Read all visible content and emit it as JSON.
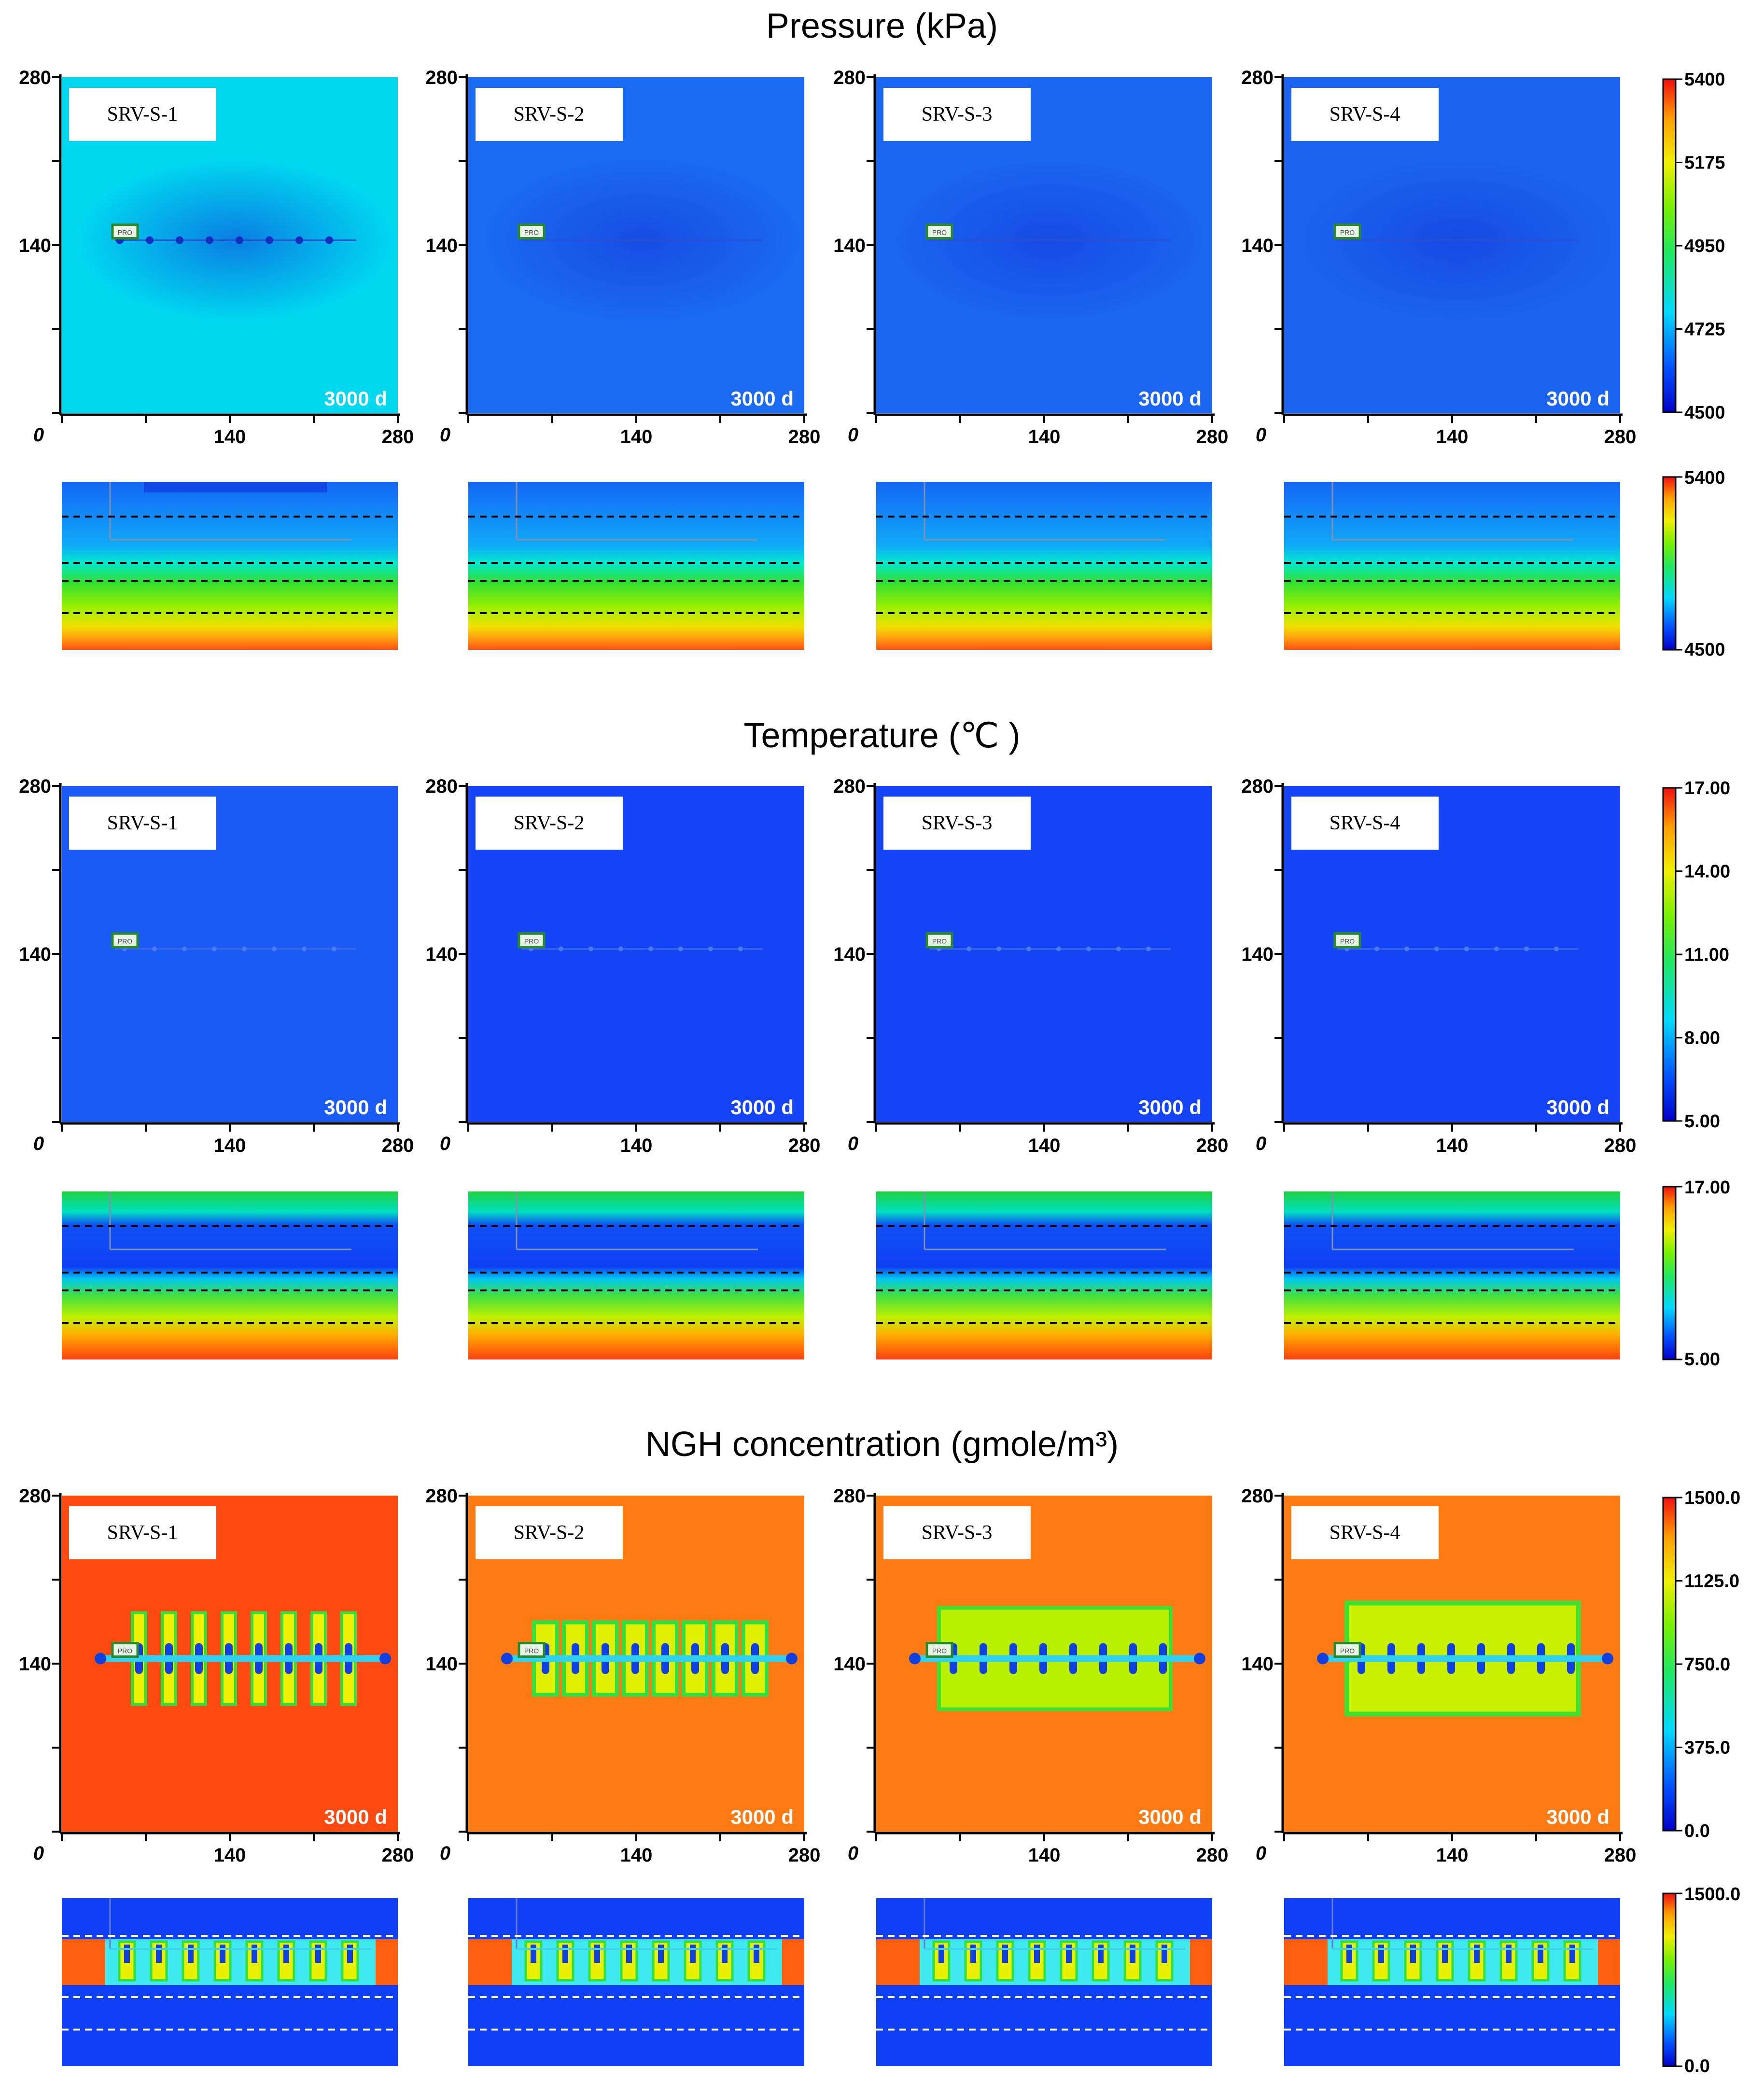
{
  "figure": {
    "time_label": "3000 d",
    "axis_ticks": [
      "0",
      "140",
      "280"
    ],
    "scenarios": [
      "SRV-S-1",
      "SRV-S-2",
      "SRV-S-3",
      "SRV-S-4"
    ],
    "well_icon_text": "PRO"
  },
  "sections": [
    {
      "key": "pressure",
      "title": "Pressure (kPa)",
      "colorbar_ticks": [
        "5400",
        "5175",
        "4950",
        "4725",
        "4500"
      ],
      "section_colorbar_ticks": [
        "5400",
        "4500"
      ],
      "map_colors": [
        "#00d8f0",
        "#1a6af2",
        "#1a66f2",
        "#1a64f0"
      ],
      "well_color": "#2b4fd0"
    },
    {
      "key": "temperature",
      "title": "Temperature (℃ )",
      "colorbar_ticks": [
        "17.00",
        "14.00",
        "11.00",
        "8.00",
        "5.00"
      ],
      "section_colorbar_ticks": [
        "17.00",
        "5.00"
      ],
      "map_colors": [
        "#1a5af5",
        "#1444f5",
        "#1444f5",
        "#1444f5"
      ],
      "well_color": "#3a6ae0"
    },
    {
      "key": "ngh",
      "title": "NGH concentration (gmole/m³)",
      "colorbar_ticks": [
        "1500.0",
        "1125.0",
        "750.0",
        "375.0",
        "0.0"
      ],
      "section_colorbar_ticks": [
        "1500.0",
        "0.0"
      ],
      "map_colors": [
        "#fc4a10",
        "#fe7a12",
        "#fe7a12",
        "#fe7a12"
      ],
      "well_color": "#1060ff"
    }
  ]
}
